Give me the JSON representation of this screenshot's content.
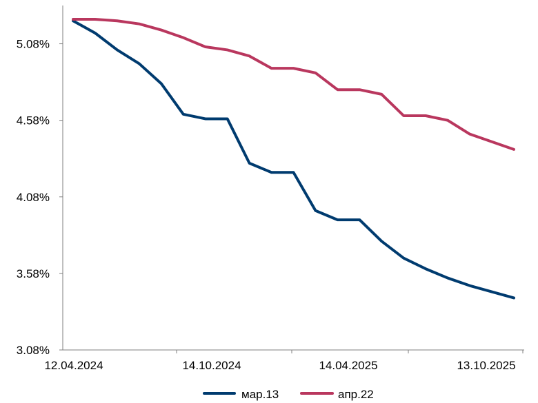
{
  "chart_data": {
    "type": "line",
    "title": "",
    "xlabel": "",
    "ylabel": "",
    "ylim": [
      3.08,
      5.33
    ],
    "y_ticks": [
      "3.08%",
      "3.58%",
      "4.08%",
      "4.58%",
      "5.08%"
    ],
    "x_tick_labels": [
      "12.04.2024",
      "14.10.2024",
      "14.04.2025",
      "13.10.2025"
    ],
    "grid": false,
    "legend_position": "bottom",
    "x": [
      "12.04.2024",
      "12.05.2024",
      "12.06.2024",
      "12.07.2024",
      "12.08.2024",
      "12.09.2024",
      "12.10.2024",
      "12.11.2024",
      "12.12.2024",
      "12.01.2025",
      "12.02.2025",
      "12.03.2025",
      "12.04.2025",
      "12.05.2025",
      "12.06.2025",
      "12.07.2025",
      "12.08.2025",
      "12.09.2025",
      "12.10.2025",
      "12.11.2025",
      "12.12.2025"
    ],
    "series": [
      {
        "name": "мар.13",
        "color": "#003b6f",
        "values": [
          5.23,
          5.15,
          5.04,
          4.95,
          4.82,
          4.62,
          4.59,
          4.59,
          4.3,
          4.24,
          4.24,
          3.99,
          3.93,
          3.93,
          3.79,
          3.68,
          3.61,
          3.55,
          3.5,
          3.46,
          3.42
        ]
      },
      {
        "name": "апр.22",
        "color": "#b9375e",
        "values": [
          5.24,
          5.24,
          5.23,
          5.21,
          5.17,
          5.12,
          5.06,
          5.04,
          5.0,
          4.92,
          4.92,
          4.89,
          4.78,
          4.78,
          4.75,
          4.61,
          4.61,
          4.58,
          4.49,
          4.44,
          4.39
        ]
      }
    ]
  }
}
